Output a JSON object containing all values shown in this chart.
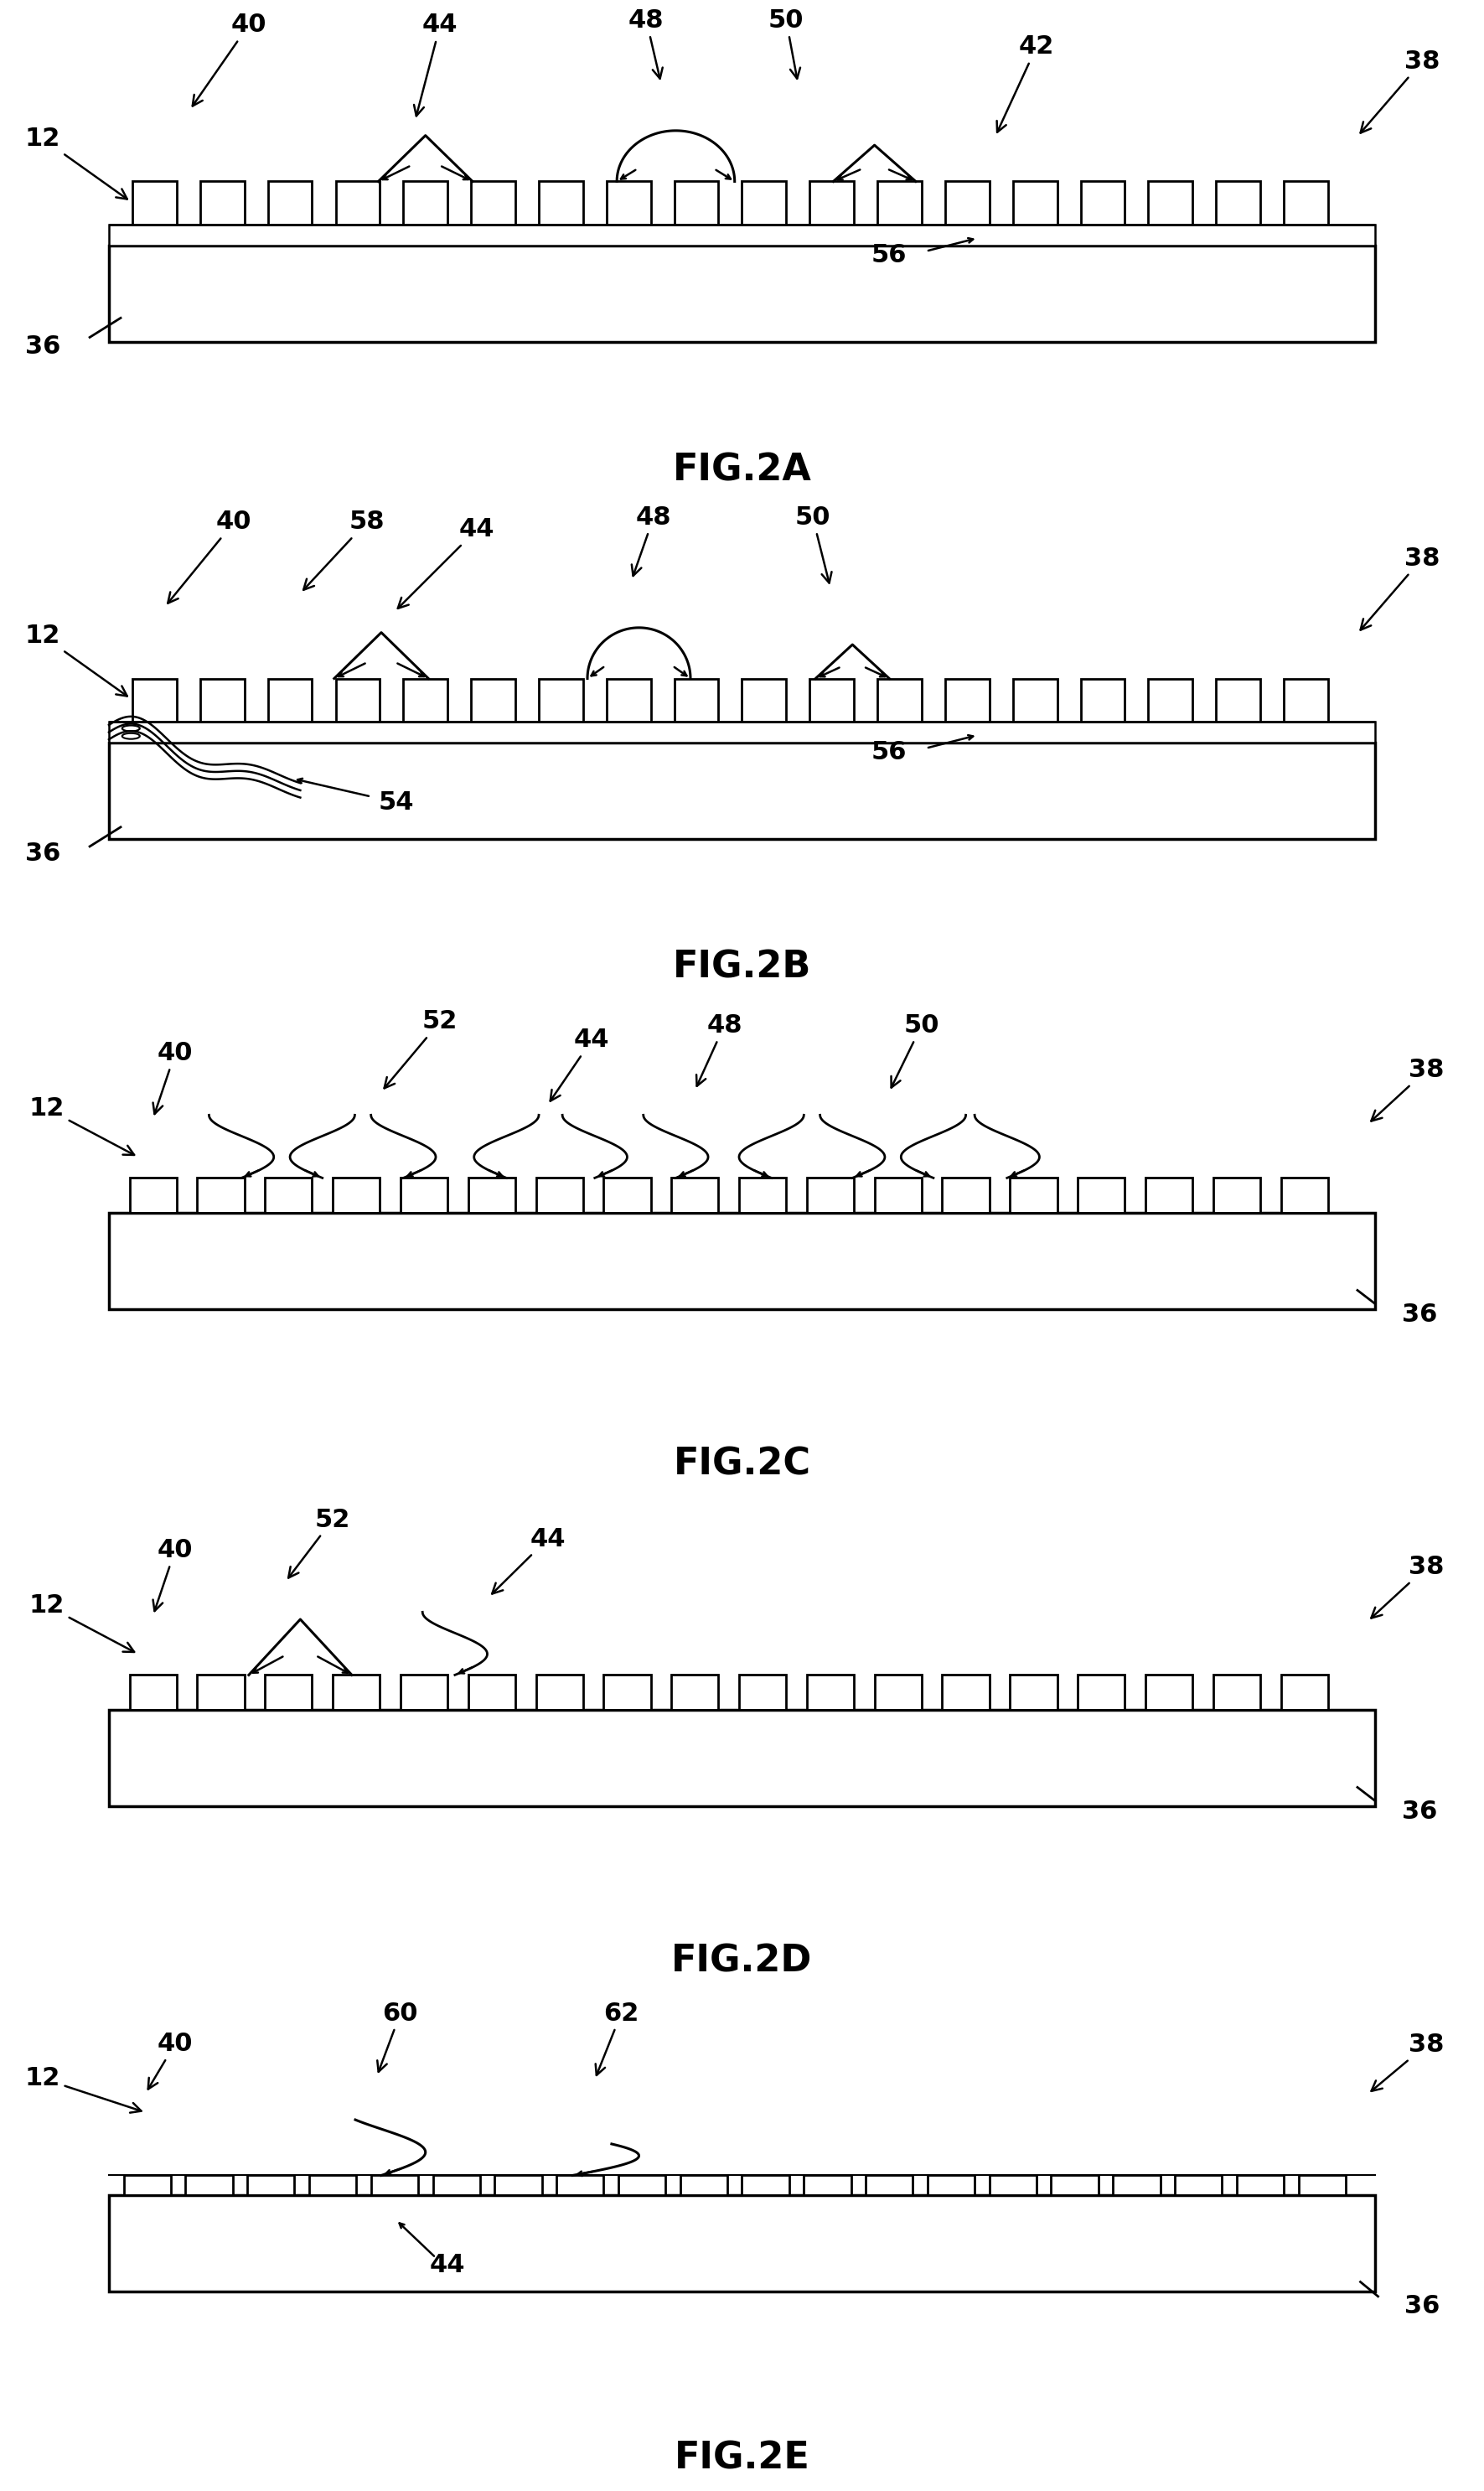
{
  "fig_labels": [
    "FIG.2A",
    "FIG.2B",
    "FIG.2C",
    "FIG.2D",
    "FIG.2E"
  ],
  "background_color": "#ffffff",
  "line_color": "#000000",
  "fig_label_fontsize": 32,
  "annotation_fontsize": 22,
  "panels": 5
}
